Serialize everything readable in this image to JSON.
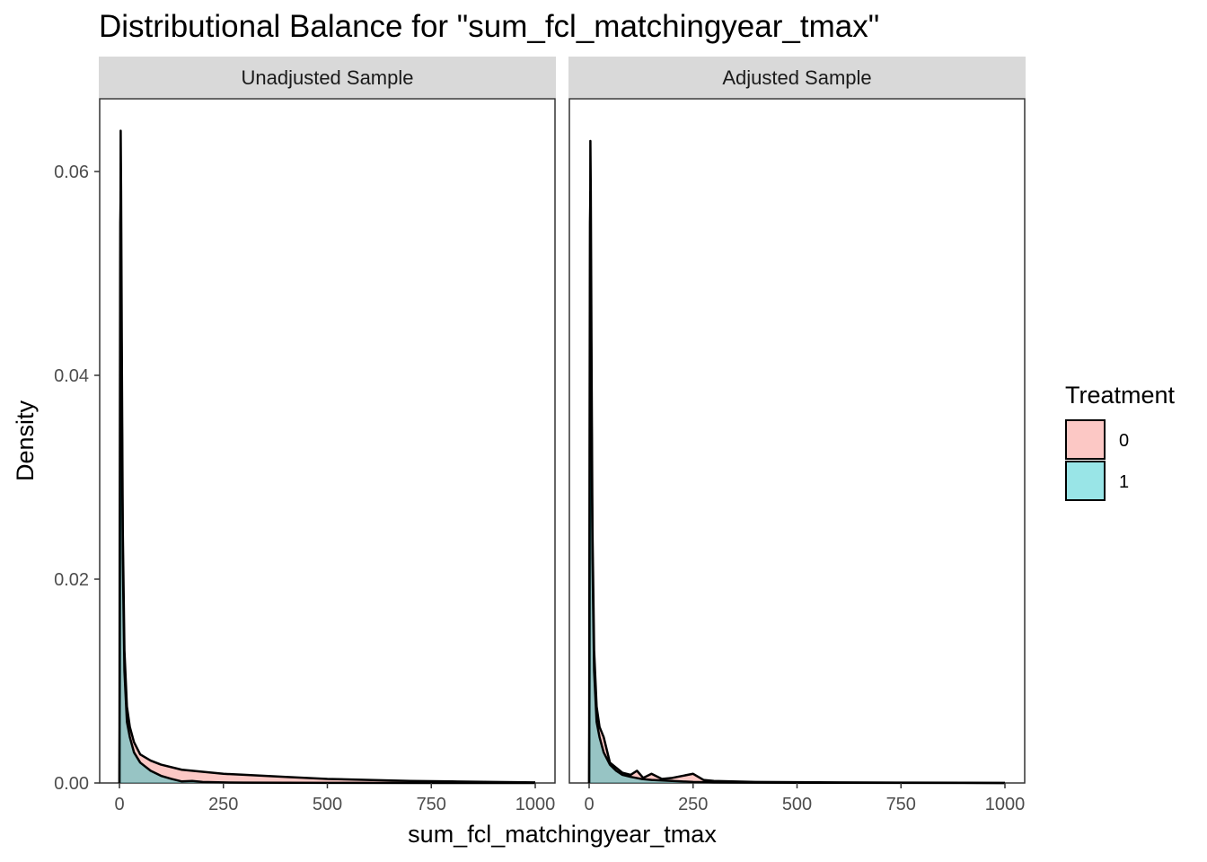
{
  "chart_data": {
    "type": "area",
    "title": "Distributional Balance for \"sum_fcl_matchingyear_tmax\"",
    "xlabel": "sum_fcl_matchingyear_tmax",
    "ylabel": "Density",
    "xlim": [
      -40,
      1040
    ],
    "ylim": [
      0,
      0.067
    ],
    "x_ticks": [
      0,
      250,
      500,
      750,
      1000
    ],
    "x_tick_labels": [
      "0",
      "250",
      "500",
      "750",
      "1000"
    ],
    "y_ticks": [
      0.0,
      0.02,
      0.04,
      0.06
    ],
    "y_tick_labels": [
      "0.00",
      "0.02",
      "0.04",
      "0.06"
    ],
    "legend": {
      "title": "Treatment",
      "position": "right",
      "entries": [
        {
          "label": "0",
          "color": "#F8766D"
        },
        {
          "label": "1",
          "color": "#00BFC4"
        }
      ]
    },
    "panels": [
      {
        "label": "Unadjusted Sample",
        "series": [
          {
            "name": "0",
            "color": "#F8766D",
            "points": [
              [
                0,
                0
              ],
              [
                1,
                0.01
              ],
              [
                2,
                0.038
              ],
              [
                3,
                0.064
              ],
              [
                4,
                0.058
              ],
              [
                6,
                0.04
              ],
              [
                8,
                0.025
              ],
              [
                12,
                0.013
              ],
              [
                18,
                0.0075
              ],
              [
                25,
                0.0055
              ],
              [
                35,
                0.004
              ],
              [
                50,
                0.0028
              ],
              [
                75,
                0.0022
              ],
              [
                100,
                0.0018
              ],
              [
                150,
                0.0013
              ],
              [
                200,
                0.0011
              ],
              [
                250,
                0.0009
              ],
              [
                300,
                0.0008
              ],
              [
                400,
                0.0006
              ],
              [
                500,
                0.0004
              ],
              [
                600,
                0.0003
              ],
              [
                700,
                0.0002
              ],
              [
                800,
                0.00015
              ],
              [
                900,
                0.0001
              ],
              [
                1000,
                5e-05
              ]
            ]
          },
          {
            "name": "1",
            "color": "#00BFC4",
            "points": [
              [
                0,
                0
              ],
              [
                1,
                0.032
              ],
              [
                2,
                0.055
              ],
              [
                3,
                0.058
              ],
              [
                4,
                0.05
              ],
              [
                6,
                0.035
              ],
              [
                8,
                0.022
              ],
              [
                12,
                0.011
              ],
              [
                18,
                0.006
              ],
              [
                25,
                0.0045
              ],
              [
                35,
                0.003
              ],
              [
                50,
                0.002
              ],
              [
                75,
                0.0012
              ],
              [
                100,
                0.0007
              ],
              [
                125,
                0.0004
              ],
              [
                150,
                0.00015
              ],
              [
                175,
                0.0002
              ],
              [
                200,
                0.0001
              ],
              [
                250,
                5e-05
              ],
              [
                300,
                3e-05
              ],
              [
                400,
                2e-05
              ],
              [
                500,
                1e-05
              ],
              [
                750,
                5e-06
              ],
              [
                1000,
                0.0
              ]
            ]
          }
        ]
      },
      {
        "label": "Adjusted Sample",
        "series": [
          {
            "name": "0",
            "color": "#F8766D",
            "points": [
              [
                0,
                0
              ],
              [
                1,
                0.01
              ],
              [
                2,
                0.038
              ],
              [
                3,
                0.063
              ],
              [
                4,
                0.058
              ],
              [
                6,
                0.04
              ],
              [
                8,
                0.025
              ],
              [
                12,
                0.013
              ],
              [
                18,
                0.0075
              ],
              [
                25,
                0.0055
              ],
              [
                35,
                0.0045
              ],
              [
                50,
                0.002
              ],
              [
                65,
                0.0015
              ],
              [
                80,
                0.001
              ],
              [
                100,
                0.0008
              ],
              [
                115,
                0.0012
              ],
              [
                130,
                0.0005
              ],
              [
                150,
                0.0009
              ],
              [
                175,
                0.0004
              ],
              [
                200,
                0.0005
              ],
              [
                250,
                0.0009
              ],
              [
                275,
                0.0003
              ],
              [
                300,
                0.0002
              ],
              [
                400,
                0.0001
              ],
              [
                500,
                8e-05
              ],
              [
                600,
                5e-05
              ],
              [
                750,
                3e-05
              ],
              [
                900,
                2e-05
              ],
              [
                1000,
                0.0
              ]
            ]
          },
          {
            "name": "1",
            "color": "#00BFC4",
            "points": [
              [
                0,
                0
              ],
              [
                1,
                0.032
              ],
              [
                2,
                0.055
              ],
              [
                3,
                0.058
              ],
              [
                4,
                0.05
              ],
              [
                6,
                0.035
              ],
              [
                8,
                0.022
              ],
              [
                12,
                0.011
              ],
              [
                18,
                0.006
              ],
              [
                25,
                0.0045
              ],
              [
                35,
                0.003
              ],
              [
                50,
                0.0018
              ],
              [
                65,
                0.0012
              ],
              [
                80,
                0.0008
              ],
              [
                100,
                0.0006
              ],
              [
                125,
                0.0004
              ],
              [
                150,
                0.0003
              ],
              [
                200,
                0.0002
              ],
              [
                250,
                0.0001
              ],
              [
                300,
                5e-05
              ],
              [
                500,
                2e-05
              ],
              [
                750,
                1e-05
              ],
              [
                1000,
                0.0
              ]
            ]
          }
        ]
      }
    ]
  }
}
